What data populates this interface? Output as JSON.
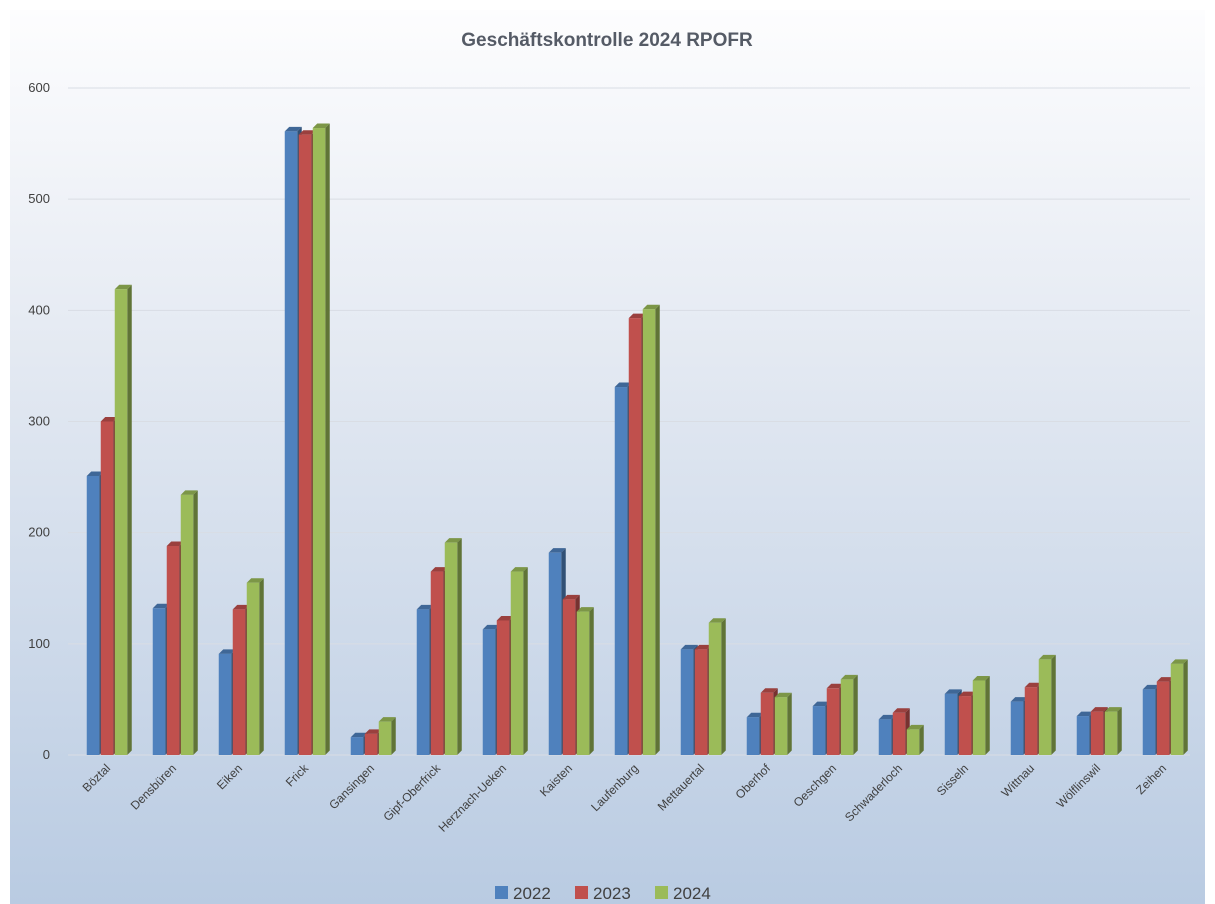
{
  "chart_data": {
    "type": "bar",
    "title": "Geschäftskontrolle 2024 RPOFR",
    "xlabel": "",
    "ylabel": "",
    "ylim": [
      0,
      600
    ],
    "yticks": [
      0,
      100,
      200,
      300,
      400,
      500,
      600
    ],
    "grid": true,
    "legend_position": "bottom",
    "categories": [
      "Böztal",
      "Densbüren",
      "Eiken",
      "Frick",
      "Gansingen",
      "Gipf-Oberfrick",
      "Herznach-Ueken",
      "Kaisten",
      "Laufenburg",
      "Mettauertal",
      "Oberhof",
      "Oeschgen",
      "Schwaderloch",
      "Sisseln",
      "Wittnau",
      "Wölflinswil",
      "Zeihen"
    ],
    "series": [
      {
        "name": "2022",
        "color": "#4f81bd",
        "values": [
          251,
          132,
          91,
          561,
          16,
          131,
          113,
          182,
          331,
          95,
          34,
          44,
          32,
          55,
          48,
          35,
          59
        ]
      },
      {
        "name": "2023",
        "color": "#c0504d",
        "values": [
          300,
          188,
          131,
          558,
          19,
          165,
          121,
          140,
          393,
          95,
          56,
          60,
          38,
          53,
          61,
          39,
          66
        ]
      },
      {
        "name": "2024",
        "color": "#9bbb59",
        "values": [
          419,
          234,
          155,
          564,
          30,
          191,
          165,
          129,
          401,
          119,
          52,
          68,
          23,
          67,
          86,
          39,
          82
        ]
      }
    ]
  }
}
